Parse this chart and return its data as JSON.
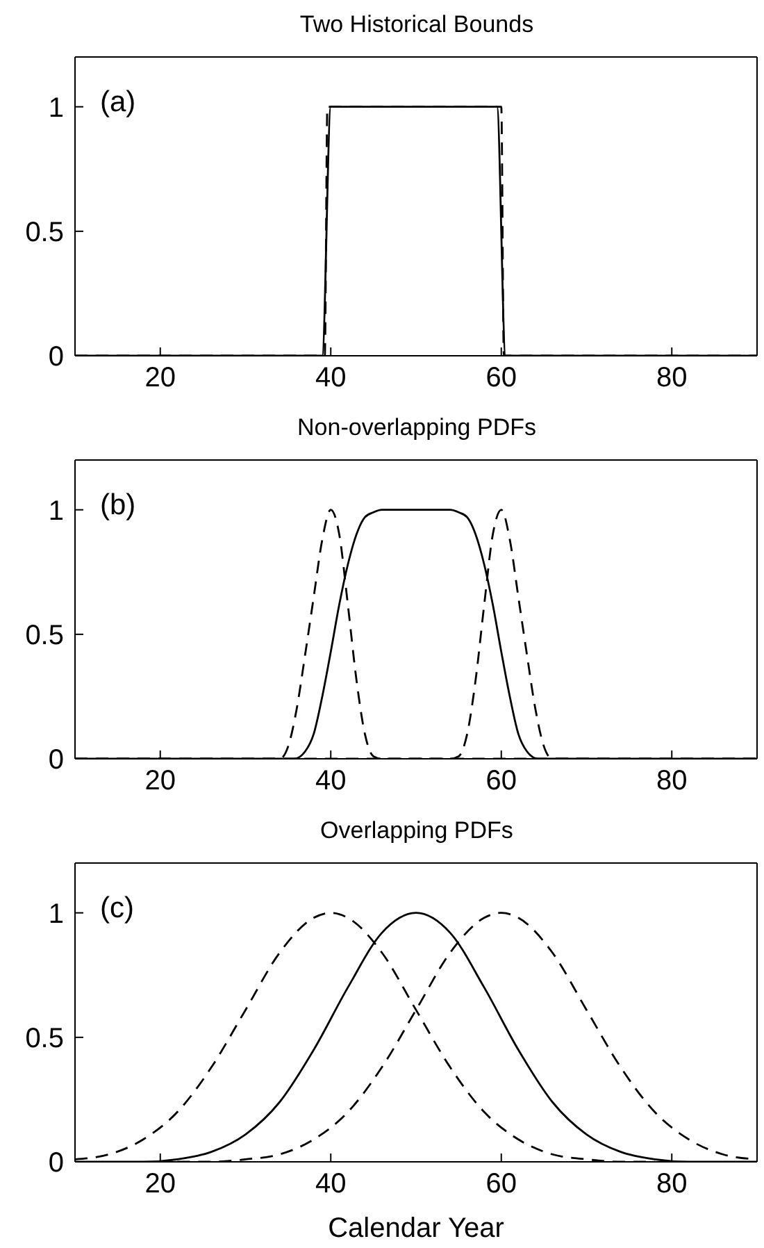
{
  "chart_data": [
    {
      "type": "line",
      "title": "Two Historical Bounds",
      "annotations": [
        "(a)"
      ],
      "xlim": [
        10,
        90
      ],
      "xticks": [
        20,
        40,
        60,
        80
      ],
      "ylim": [
        0,
        1.2
      ],
      "yticks": [
        0,
        0.5,
        1
      ],
      "series": [
        {
          "color": "#000000",
          "line_style": "solid",
          "x": [
            10,
            39,
            40,
            59.5,
            60.5,
            90
          ],
          "values": [
            0,
            0,
            1,
            1,
            0,
            0
          ]
        },
        {
          "color": "#000000",
          "line_style": "dashed",
          "x": [
            10,
            39.3,
            39.6,
            60,
            60.3,
            90
          ],
          "values": [
            0,
            0,
            1,
            1,
            0,
            0
          ]
        }
      ]
    },
    {
      "type": "line",
      "title": "Non-overlapping PDFs",
      "annotations": [
        "(b)"
      ],
      "xlim": [
        10,
        90
      ],
      "xticks": [
        20,
        40,
        60,
        80
      ],
      "ylim": [
        0,
        1.2
      ],
      "yticks": [
        0,
        0.5,
        1
      ],
      "series": [
        {
          "color": "#000000",
          "line_style": "solid",
          "x": [
            10,
            35.7,
            37,
            38,
            39,
            40,
            41,
            42,
            43,
            44,
            45,
            46,
            54,
            55,
            56,
            57,
            58,
            59,
            60,
            61,
            62,
            63,
            64.3,
            90
          ],
          "values": [
            0,
            0,
            0.03,
            0.1,
            0.25,
            0.43,
            0.62,
            0.78,
            0.9,
            0.97,
            0.99,
            1,
            1,
            0.99,
            0.97,
            0.9,
            0.78,
            0.62,
            0.43,
            0.25,
            0.1,
            0.03,
            0,
            0
          ]
        },
        {
          "color": "#000000",
          "line_style": "dashed",
          "x": [
            10,
            34,
            35,
            36,
            37,
            38,
            39,
            40,
            41,
            42,
            43,
            44,
            45,
            46,
            90
          ],
          "values": [
            0,
            0,
            0.05,
            0.2,
            0.42,
            0.65,
            0.88,
            1,
            0.9,
            0.62,
            0.32,
            0.1,
            0.01,
            0,
            0
          ]
        },
        {
          "color": "#000000",
          "line_style": "dashed",
          "x": [
            10,
            54,
            55,
            56,
            57,
            58,
            59,
            60,
            61,
            62,
            63,
            64,
            65,
            66,
            90
          ],
          "values": [
            0,
            0,
            0.01,
            0.1,
            0.32,
            0.62,
            0.9,
            1,
            0.88,
            0.65,
            0.42,
            0.2,
            0.05,
            0,
            0
          ]
        }
      ]
    },
    {
      "type": "line",
      "title": "Overlapping PDFs",
      "xlabel": "Calendar Year",
      "annotations": [
        "(c)"
      ],
      "xlim": [
        10,
        90
      ],
      "xticks": [
        20,
        40,
        60,
        80
      ],
      "ylim": [
        0,
        1.2
      ],
      "yticks": [
        0,
        0.5,
        1
      ],
      "series": [
        {
          "color": "#000000",
          "line_style": "solid",
          "x": [
            10,
            18,
            22,
            26,
            30,
            34,
            38,
            42,
            46,
            50,
            54,
            58,
            62,
            66,
            70,
            74,
            78,
            82,
            90
          ],
          "values": [
            0,
            0,
            0.01,
            0.04,
            0.11,
            0.24,
            0.45,
            0.7,
            0.92,
            1,
            0.92,
            0.7,
            0.45,
            0.24,
            0.11,
            0.04,
            0.01,
            0,
            0
          ]
        },
        {
          "color": "#000000",
          "line_style": "dashed",
          "x": [
            10,
            14,
            18,
            22,
            26,
            30,
            34,
            38,
            40,
            42,
            46,
            50,
            54,
            58,
            62,
            66,
            70,
            74,
            78
          ],
          "values": [
            0.01,
            0.03,
            0.09,
            0.2,
            0.38,
            0.61,
            0.84,
            0.98,
            1,
            0.98,
            0.84,
            0.61,
            0.38,
            0.2,
            0.09,
            0.03,
            0.01,
            0,
            0
          ]
        },
        {
          "color": "#000000",
          "line_style": "dashed",
          "x": [
            22,
            26,
            30,
            34,
            38,
            42,
            46,
            50,
            54,
            58,
            60,
            62,
            66,
            70,
            74,
            78,
            82,
            86,
            90
          ],
          "values": [
            0,
            0,
            0.01,
            0.03,
            0.09,
            0.2,
            0.38,
            0.61,
            0.84,
            0.98,
            1,
            0.98,
            0.84,
            0.61,
            0.38,
            0.2,
            0.09,
            0.03,
            0.01
          ]
        }
      ]
    }
  ]
}
